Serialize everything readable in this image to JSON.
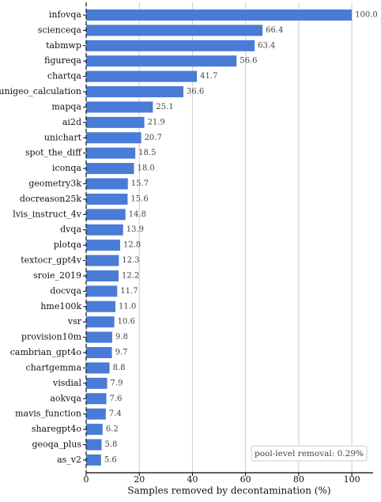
{
  "chart_data": {
    "type": "bar",
    "orientation": "horizontal",
    "categories": [
      "infovqa",
      "scienceqa",
      "tabmwp",
      "figureqa",
      "chartqa",
      "unigeo_calculation",
      "mapqa",
      "ai2d",
      "unichart",
      "spot_the_diff",
      "iconqa",
      "geometry3k",
      "docreason25k",
      "lvis_instruct_4v",
      "dvqa",
      "plotqa",
      "textocr_gpt4v",
      "sroie_2019",
      "docvqa",
      "hme100k",
      "vsr",
      "provision10m",
      "cambrian_gpt4o",
      "chartgemma",
      "visdial",
      "aokvqa",
      "mavis_function",
      "sharegpt4o",
      "geoqa_plus",
      "as_v2"
    ],
    "values": [
      100.0,
      66.4,
      63.4,
      56.6,
      41.7,
      36.6,
      25.1,
      21.9,
      20.7,
      18.5,
      18.0,
      15.7,
      15.6,
      14.8,
      13.9,
      12.8,
      12.3,
      12.2,
      11.7,
      11.0,
      10.6,
      9.8,
      9.7,
      8.8,
      7.9,
      7.6,
      7.4,
      6.2,
      5.8,
      5.6
    ],
    "value_labels": [
      "100.0",
      "66.4",
      "63.4",
      "56.6",
      "41.7",
      "36.6",
      "25.1",
      "21.9",
      "20.7",
      "18.5",
      "18.0",
      "15.7",
      "15.6",
      "14.8",
      "13.9",
      "12.8",
      "12.3",
      "12.2",
      "11.7",
      "11.0",
      "10.6",
      "9.8",
      "9.7",
      "8.8",
      "7.9",
      "7.6",
      "7.4",
      "6.2",
      "5.8",
      "5.6"
    ],
    "color": "#4a7bd6",
    "xlabel": "Samples removed by decontamination (%)",
    "xlim": [
      0,
      108
    ],
    "xticks": [
      0,
      20,
      40,
      60,
      80,
      100
    ],
    "grid": true,
    "annotation": "pool-level removal: 0.29%"
  }
}
